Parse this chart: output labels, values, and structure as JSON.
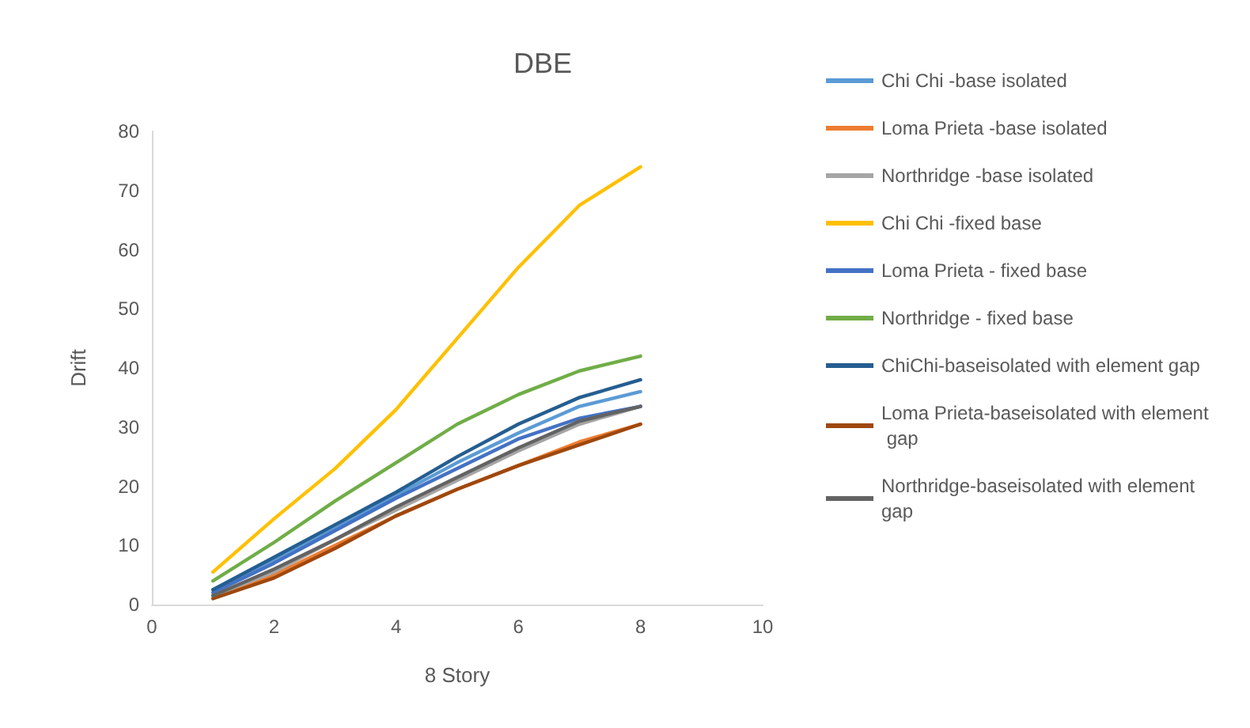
{
  "chart_data": {
    "type": "line",
    "title": "DBE",
    "xlabel": "8 Story",
    "ylabel": "Drift",
    "x": [
      1,
      2,
      3,
      4,
      5,
      6,
      7,
      8
    ],
    "xlim": [
      0,
      10
    ],
    "xticks": [
      0,
      2,
      4,
      6,
      8,
      10
    ],
    "ylim": [
      0,
      80
    ],
    "yticks": [
      0,
      10,
      20,
      30,
      40,
      50,
      60,
      70,
      80
    ],
    "grid": false,
    "legend": "right",
    "marker": "none",
    "line_style": "solid",
    "series": [
      {
        "name": "Chi Chi -base isolated",
        "color": "#5b9bd5",
        "values": [
          2.5,
          7.5,
          13,
          18.5,
          24,
          29,
          33.5,
          36
        ]
      },
      {
        "name": "Loma Prieta -base isolated",
        "color": "#ed7d31",
        "values": [
          1.5,
          5,
          10,
          15,
          19.5,
          23.5,
          27.5,
          30.5
        ]
      },
      {
        "name": "Northridge -base isolated",
        "color": "#a5a5a5",
        "values": [
          1.5,
          5.5,
          11,
          16,
          21,
          26,
          30.5,
          33.5
        ]
      },
      {
        "name": "Chi Chi -fixed base",
        "color": "#ffc000",
        "values": [
          5.5,
          14.5,
          23,
          33,
          45,
          57,
          67.5,
          74
        ]
      },
      {
        "name": "Loma Prieta - fixed base",
        "color": "#4472c4",
        "values": [
          2,
          7,
          12.5,
          18,
          23,
          28,
          31.5,
          33.5
        ]
      },
      {
        "name": "Northridge - fixed base",
        "color": "#70ad47",
        "values": [
          4,
          10.5,
          17.5,
          24,
          30.5,
          35.5,
          39.5,
          42
        ]
      },
      {
        "name": "ChiChi-baseisolated with element gap",
        "color": "#255e91",
        "values": [
          2.5,
          8,
          13.5,
          19,
          25,
          30.5,
          35,
          38
        ]
      },
      {
        "name": "Loma Prieta-baseisolated with element gap",
        "color": "#9e480e",
        "values": [
          1,
          4.5,
          9.5,
          15,
          19.5,
          23.5,
          27,
          30.5
        ]
      },
      {
        "name": "Northridge-baseisolated with element gap",
        "color": "#636363",
        "values": [
          1.5,
          6,
          11,
          16.5,
          21.5,
          26.5,
          31,
          33.5
        ]
      }
    ]
  }
}
